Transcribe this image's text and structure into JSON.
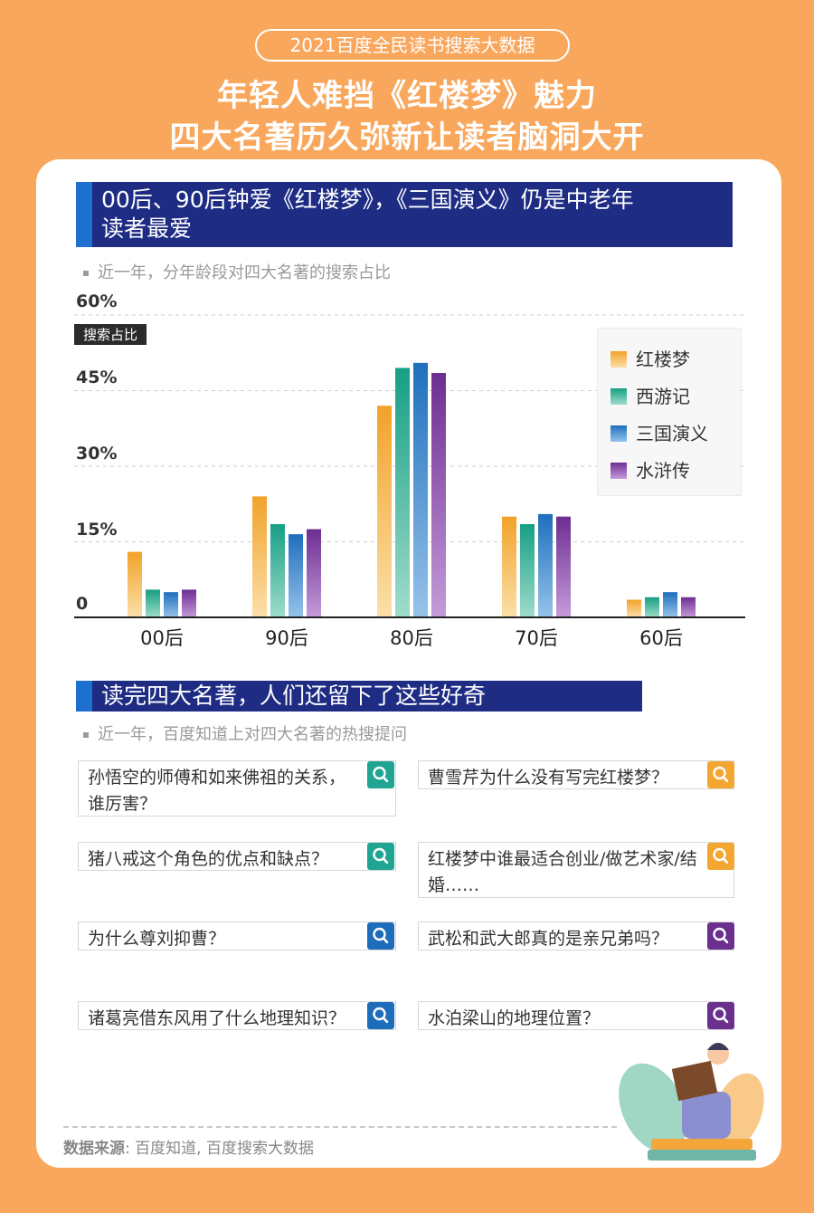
{
  "header": {
    "pill": "2021百度全民读书搜索大数据",
    "title_line1": "年轻人难挡《红楼梦》魅力",
    "title_line2": "四大名著历久弥新让读者脑洞大开"
  },
  "section1": {
    "title_line1": "00后、90后钟爱《红楼梦》，《三国演义》仍是中老年",
    "title_line2": "读者最爱",
    "note": "近一年，分年龄段对四大名著的搜索占比"
  },
  "chart_data": {
    "type": "bar",
    "ylabel": "搜索占比",
    "ylim": [
      0,
      60
    ],
    "yticks": [
      "60%",
      "45%",
      "30%",
      "15%",
      "0"
    ],
    "categories": [
      "00后",
      "90后",
      "80后",
      "70后",
      "60后"
    ],
    "series": [
      {
        "name": "红楼梦",
        "values": [
          13,
          24,
          42,
          20,
          3.5
        ]
      },
      {
        "name": "西游记",
        "values": [
          5.5,
          18.5,
          49.5,
          18.5,
          4
        ]
      },
      {
        "name": "三国演义",
        "values": [
          5,
          16.5,
          50.5,
          20.5,
          5
        ]
      },
      {
        "name": "水浒传",
        "values": [
          5.5,
          17.5,
          48.5,
          20,
          4
        ]
      }
    ],
    "colors": [
      "#F2A93B",
      "#2BAE8F",
      "#2E7CC4",
      "#7B3F9E"
    ],
    "grid": true,
    "legend_position": "right"
  },
  "section2": {
    "title": "读完四大名著，人们还留下了这些好奇",
    "note": "近一年，百度知道上对四大名著的热搜提问"
  },
  "questions": [
    {
      "text": "孙悟空的师傅和如来佛祖的关系，谁厉害？",
      "icon": "search-icon",
      "color": "#1FA592"
    },
    {
      "text": "曹雪芹为什么没有写完红楼梦？",
      "icon": "search-icon",
      "color": "#F3A630"
    },
    {
      "text": "猪八戒这个角色的优点和缺点？",
      "icon": "search-icon",
      "color": "#1FA592"
    },
    {
      "text": "红楼梦中谁最适合创业/做艺术家/结婚……",
      "icon": "search-icon",
      "color": "#F3A630"
    },
    {
      "text": "为什么尊刘抑曹？",
      "icon": "search-icon",
      "color": "#1D6DBA"
    },
    {
      "text": "武松和武大郎真的是亲兄弟吗？",
      "icon": "search-icon",
      "color": "#6B2F8E"
    },
    {
      "text": "诸葛亮借东风用了什么地理知识？",
      "icon": "search-icon",
      "color": "#1D6DBA"
    },
    {
      "text": "水泊梁山的地理位置？",
      "icon": "search-icon",
      "color": "#6B2F8E"
    }
  ],
  "footer": {
    "source_label": "数据来源",
    "source_text": ": 百度知道, 百度搜索大数据"
  }
}
